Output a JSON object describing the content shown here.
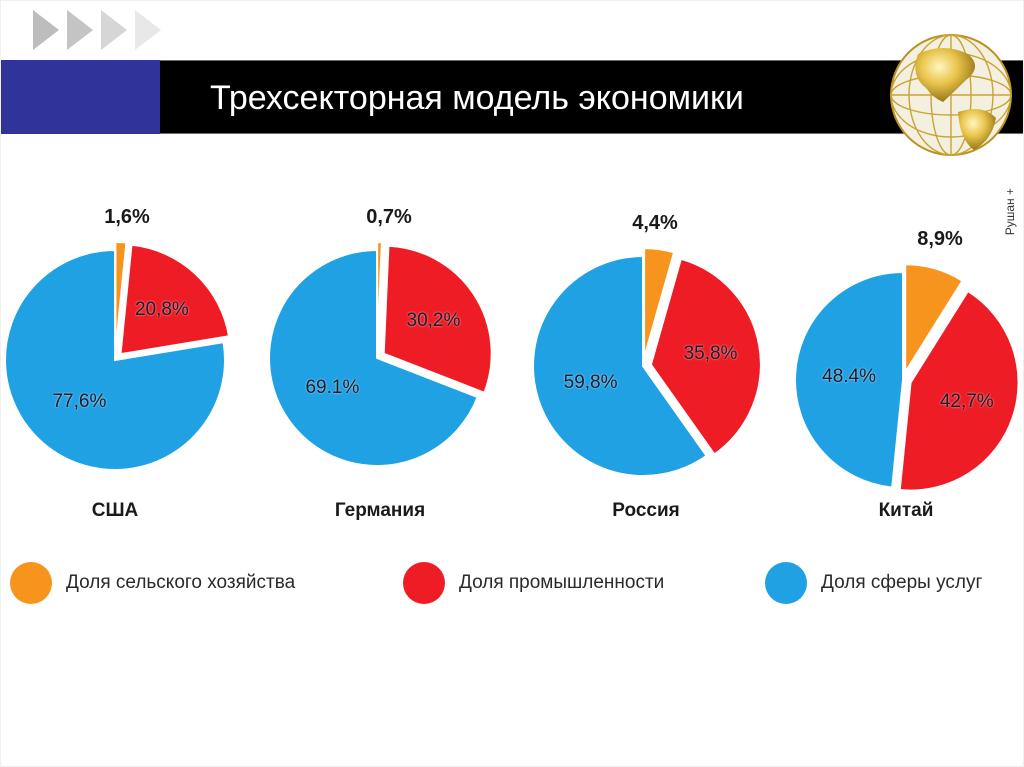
{
  "header": {
    "title": "Трехсекторная модель экономики",
    "nav_arrows": [
      "arrow-1",
      "arrow-2",
      "arrow-3",
      "arrow-4"
    ],
    "logo_icon": "golden-globe-icon"
  },
  "colors": {
    "agriculture": "#f7941d",
    "industry": "#ee1c25",
    "services": "#1fa1e3",
    "title_bar": "#000000",
    "accent_block": "#30349a"
  },
  "credit": "Рушан +",
  "legend": [
    {
      "label": "Доля сельского хозяйства",
      "color": "#f7941d"
    },
    {
      "label": "Доля промышленности",
      "color": "#ee1c25"
    },
    {
      "label": "Доля сферы услуг",
      "color": "#1fa1e3"
    }
  ],
  "countries": [
    {
      "name": "США",
      "agriculture_label": "1,6%",
      "industry_label": "20,8%",
      "services_label": "77,6%"
    },
    {
      "name": "Германия",
      "agriculture_label": "0,7%",
      "industry_label": "30,2%",
      "services_label": "69.1%"
    },
    {
      "name": "Россия",
      "agriculture_label": "4,4%",
      "industry_label": "35,8%",
      "services_label": "59,8%"
    },
    {
      "name": "Китай",
      "agriculture_label": "8,9%",
      "industry_label": "42,7%",
      "services_label": "48.4%"
    }
  ],
  "chart_data": {
    "type": "pie",
    "title": "Трехсекторная модель экономики",
    "categories": [
      "Доля сельского хозяйства",
      "Доля промышленности",
      "Доля сферы услуг"
    ],
    "legend_position": "bottom",
    "series": [
      {
        "name": "США",
        "values": [
          1.6,
          20.8,
          77.6
        ]
      },
      {
        "name": "Германия",
        "values": [
          0.7,
          30.2,
          69.1
        ]
      },
      {
        "name": "Россия",
        "values": [
          4.4,
          35.8,
          59.8
        ]
      },
      {
        "name": "Китай",
        "values": [
          8.9,
          42.7,
          48.4
        ]
      }
    ],
    "annotations": [
      "Рушан +"
    ]
  }
}
